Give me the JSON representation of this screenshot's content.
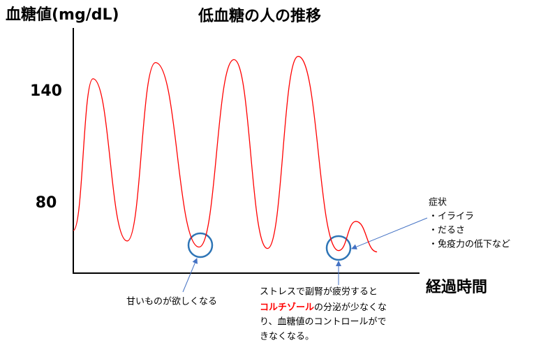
{
  "chart_data": {
    "type": "line",
    "title": "低血糖の人の推移",
    "y_label": "血糖値(mg/dL)",
    "x_label": "経過時間",
    "x": [
      0,
      5.7,
      15.6,
      23.8,
      36.4,
      46.5,
      56.2,
      65.1,
      76.8,
      81.8,
      87.9
    ],
    "series": [
      {
        "color": "#ff0000",
        "values": [
          65.4,
          146.75,
          59.75,
          155.4,
          56.5,
          157,
          55.75,
          158.75,
          54.6,
          70.25,
          53.9
        ]
      }
    ],
    "xlim": [
      0,
      100
    ],
    "ylim": [
      42.5,
      174
    ],
    "yticks": [
      80,
      140
    ],
    "annotations": {
      "sweet": "甘いものが欲しくなる",
      "stress": [
        "ストレスで副腎が疲労すると",
        "コルチゾール",
        "の分泌が少なくな",
        "り、血糖値のコントロールがで",
        "きなくなる。"
      ],
      "symptoms": [
        "症状",
        "・イライラ",
        "・だるさ",
        "・免疫力の低下など"
      ]
    }
  }
}
